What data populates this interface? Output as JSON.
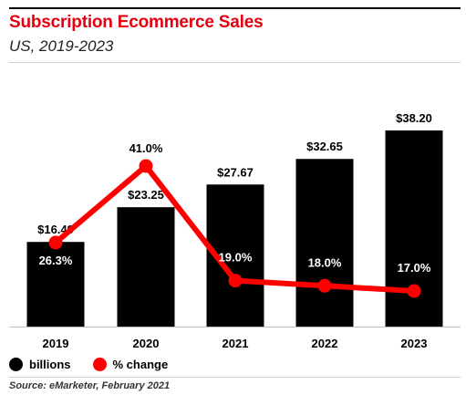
{
  "header": {
    "title": "Subscription Ecommerce Sales",
    "subtitle": "US, 2019-2023"
  },
  "legend": {
    "bars_label": "billions",
    "line_label": "% change",
    "bars_color": "#000000",
    "line_color": "#ff0000"
  },
  "source": "Source: eMarketer, February 2021",
  "chart_data": {
    "type": "bar",
    "categories": [
      "2019",
      "2020",
      "2021",
      "2022",
      "2023"
    ],
    "series": [
      {
        "name": "billions",
        "type": "bar",
        "values": [
          16.49,
          23.25,
          27.67,
          32.65,
          38.2
        ],
        "labels": [
          "$16.49",
          "$23.25",
          "$27.67",
          "$32.65",
          "$38.20"
        ],
        "color": "#000000"
      },
      {
        "name": "% change",
        "type": "line",
        "values": [
          26.3,
          41.0,
          19.0,
          18.0,
          17.0
        ],
        "labels": [
          "26.3%",
          "41.0%",
          "19.0%",
          "18.0%",
          "17.0%"
        ],
        "color": "#ff0000"
      }
    ],
    "bar_axis_range": [
      0,
      38.2
    ],
    "line_axis_range": [
      0,
      41.0
    ],
    "grid": false,
    "legend_position": "bottom-left"
  }
}
